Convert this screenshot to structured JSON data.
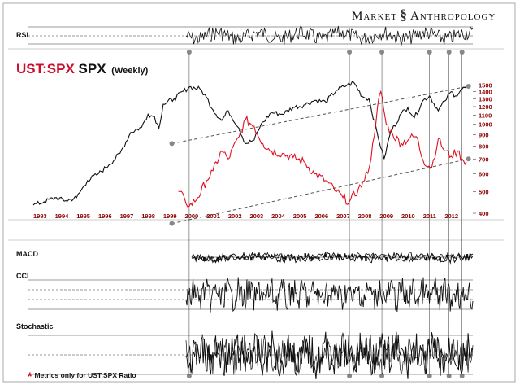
{
  "brand": {
    "left": "Market",
    "right": "Anthropology",
    "mark_icon": "helix-icon"
  },
  "title": {
    "ratio": "UST:SPX",
    "index": "SPX",
    "frequency": "(Weekly)"
  },
  "footnote": {
    "star": "*",
    "text": "Metrics only for UST:SPX Ratio"
  },
  "colors": {
    "spx": "#111111",
    "ratio": "#e01020",
    "year_labels": "#8b0000",
    "grid": "#333333"
  },
  "panels": {
    "rsi": "RSI",
    "macd": "MACD",
    "cci": "CCI",
    "stochastic": "Stochastic"
  },
  "chart_data": {
    "type": "line",
    "title": "UST:SPX SPX (Weekly)",
    "x_tick_labels": [
      "1993",
      "1994",
      "1995",
      "1996",
      "1997",
      "1998",
      "1999",
      "2000",
      "2001",
      "2002",
      "2003",
      "2004",
      "2005",
      "2006",
      "2007",
      "2008",
      "2009",
      "2010",
      "2011",
      "2012"
    ],
    "x_range": [
      1993,
      2013.3
    ],
    "y_axis": {
      "side": "right",
      "scale": "log",
      "ticks": [
        400,
        500,
        600,
        700,
        800,
        900,
        1000,
        1100,
        1200,
        1300,
        1400,
        1500
      ]
    },
    "series": [
      {
        "name": "SPX",
        "color": "#111111",
        "x": [
          1993.0,
          1993.5,
          1994.0,
          1994.5,
          1995.0,
          1995.5,
          1996.0,
          1996.5,
          1997.0,
          1997.5,
          1998.0,
          1998.3,
          1998.6,
          1998.8,
          1999.0,
          1999.5,
          2000.2,
          2000.7,
          2001.0,
          2001.3,
          2001.7,
          2002.0,
          2002.5,
          2002.8,
          2003.2,
          2003.5,
          2004.0,
          2004.5,
          2005.0,
          2005.5,
          2006.0,
          2006.5,
          2007.0,
          2007.5,
          2007.8,
          2008.2,
          2008.5,
          2008.9,
          2009.2,
          2009.5,
          2010.0,
          2010.3,
          2010.6,
          2011.0,
          2011.3,
          2011.7,
          2012.0,
          2012.3,
          2012.5,
          2012.8,
          2013.0
        ],
        "y": [
          435,
          450,
          470,
          455,
          470,
          560,
          600,
          660,
          740,
          920,
          970,
          1110,
          1080,
          960,
          1230,
          1300,
          1470,
          1440,
          1320,
          1160,
          1040,
          1150,
          960,
          820,
          850,
          990,
          1130,
          1110,
          1190,
          1220,
          1280,
          1260,
          1420,
          1500,
          1540,
          1330,
          1300,
          900,
          700,
          920,
          1120,
          1190,
          1070,
          1280,
          1340,
          1150,
          1270,
          1400,
          1340,
          1440,
          1460
        ]
      },
      {
        "name": "UST:SPX",
        "color": "#e01020",
        "x": [
          1999.7,
          2000.0,
          2000.2,
          2000.6,
          2001.0,
          2001.3,
          2001.7,
          2002.0,
          2002.5,
          2002.8,
          2003.2,
          2003.6,
          2004.0,
          2004.5,
          2005.0,
          2005.5,
          2006.0,
          2006.5,
          2007.0,
          2007.3,
          2007.6,
          2008.0,
          2008.3,
          2008.6,
          2008.9,
          2009.05,
          2009.3,
          2009.6,
          2010.0,
          2010.4,
          2010.7,
          2011.0,
          2011.4,
          2011.7,
          2012.0,
          2012.3,
          2012.6,
          2012.8,
          2013.0
        ],
        "y": [
          500,
          460,
          430,
          470,
          560,
          620,
          760,
          700,
          880,
          1050,
          980,
          820,
          760,
          740,
          710,
          680,
          600,
          560,
          500,
          470,
          450,
          510,
          560,
          700,
          1200,
          1400,
          1000,
          900,
          820,
          870,
          880,
          690,
          640,
          860,
          760,
          720,
          760,
          700,
          680
        ]
      }
    ],
    "trend_channel": {
      "style": "dashed",
      "lines": [
        {
          "x": [
            1999.4,
            2013.1
          ],
          "y": [
            820,
            1480
          ]
        },
        {
          "x": [
            1999.4,
            2013.1
          ],
          "y": [
            360,
            700
          ]
        }
      ]
    },
    "markers": {
      "x": [
        2000.2,
        2007.6,
        2009.1,
        2011.3,
        2012.2,
        2012.8
      ]
    },
    "indicator_panels": [
      "RSI",
      "MACD",
      "CCI",
      "Stochastic"
    ]
  }
}
